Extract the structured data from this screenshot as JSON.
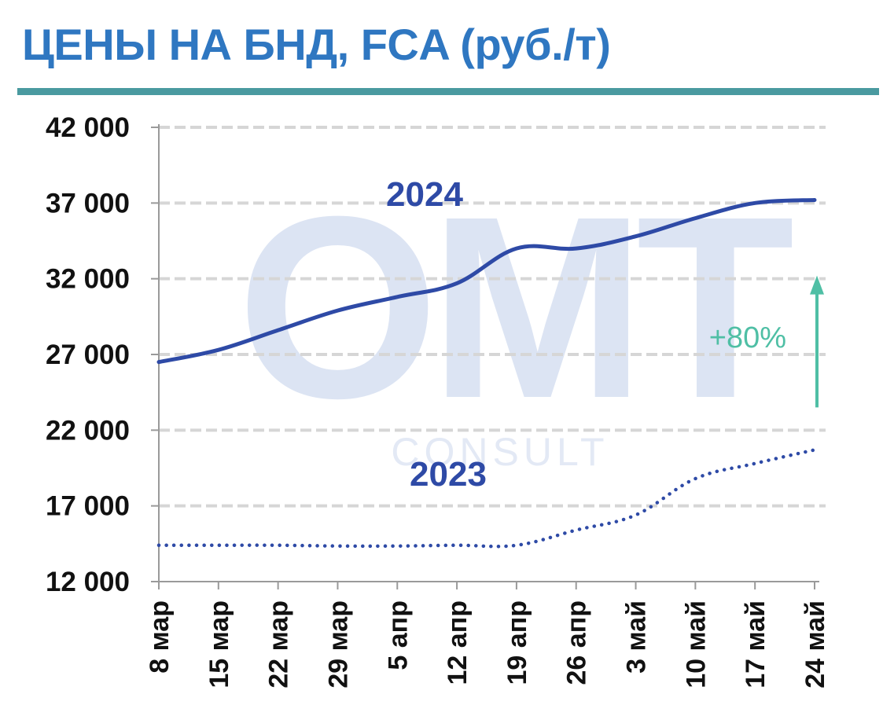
{
  "title": "ЦЕНЫ НА БНД, FCA (руб./т)",
  "colors": {
    "title": "#2f77c1",
    "rule": "#4a9aa0",
    "series_2024": "#2e4aa6",
    "series_2023": "#2e4aa6",
    "annotation": "#4fbfa5",
    "grid": "#d6d6d6",
    "axis": "#9a9a9a"
  },
  "watermark": {
    "big": "OMT",
    "small": "CONSULT"
  },
  "annotation": {
    "text": "+80%",
    "from_y": 23500,
    "to_y": 32000,
    "x_index": 11
  },
  "chart_data": {
    "type": "line",
    "title": "ЦЕНЫ НА БНД, FCA (руб./т)",
    "xlabel": "",
    "ylabel": "",
    "categories": [
      "8 мар",
      "15 мар",
      "22 мар",
      "29 мар",
      "5 апр",
      "12 апр",
      "19 апр",
      "26 апр",
      "3 май",
      "10 май",
      "17 май",
      "24 май"
    ],
    "ylim": [
      12000,
      42000
    ],
    "yticks": [
      12000,
      17000,
      22000,
      27000,
      32000,
      37000,
      42000
    ],
    "ytick_labels": [
      "12 000",
      "17 000",
      "22 000",
      "27 000",
      "32 000",
      "37 000",
      "42 000"
    ],
    "grid": true,
    "legend": "none",
    "series": [
      {
        "name": "2024",
        "style": "solid",
        "values": [
          26500,
          27300,
          28600,
          29900,
          30800,
          31700,
          34000,
          34000,
          34800,
          36000,
          37000,
          37200
        ]
      },
      {
        "name": "2023",
        "style": "dotted",
        "values": [
          14400,
          14400,
          14400,
          14350,
          14350,
          14400,
          14400,
          15400,
          16400,
          18800,
          19800,
          20700
        ]
      }
    ]
  }
}
